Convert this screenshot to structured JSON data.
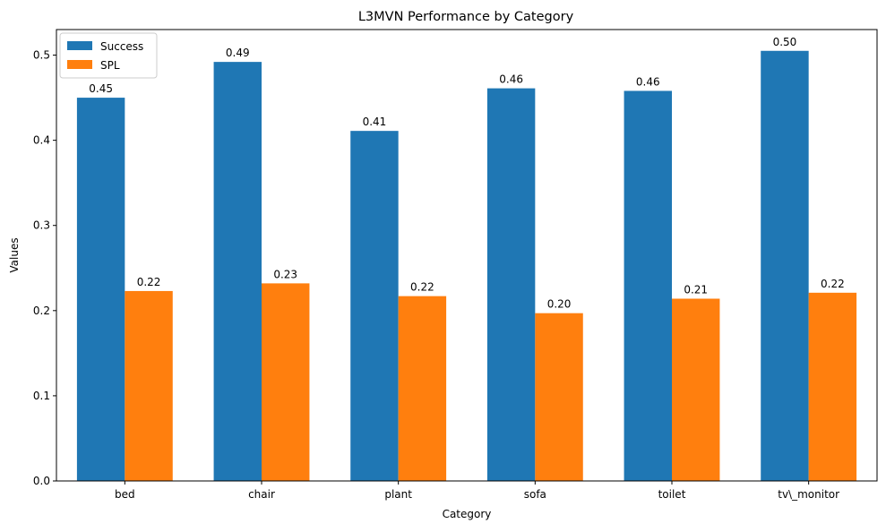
{
  "chart_data": {
    "type": "bar",
    "title": "L3MVN Performance by Category",
    "xlabel": "Category",
    "ylabel": "Values",
    "categories": [
      "bed",
      "chair",
      "plant",
      "sofa",
      "toilet",
      "tv\\_monitor"
    ],
    "series": [
      {
        "name": "Success",
        "color": "#1f77b4",
        "values": [
          0.45,
          0.492,
          0.411,
          0.461,
          0.458,
          0.505
        ],
        "labels": [
          "0.45",
          "0.49",
          "0.41",
          "0.46",
          "0.46",
          "0.50"
        ]
      },
      {
        "name": "SPL",
        "color": "#ff7f0e",
        "values": [
          0.223,
          0.232,
          0.217,
          0.197,
          0.214,
          0.221
        ],
        "labels": [
          "0.22",
          "0.23",
          "0.22",
          "0.20",
          "0.21",
          "0.22"
        ]
      }
    ],
    "ylim": [
      0,
      0.53
    ],
    "yticks": [
      0.0,
      0.1,
      0.2,
      0.3,
      0.4,
      0.5
    ],
    "ytick_labels": [
      "0.0",
      "0.1",
      "0.2",
      "0.3",
      "0.4",
      "0.5"
    ],
    "legend_position": "top-left",
    "grid": false
  }
}
